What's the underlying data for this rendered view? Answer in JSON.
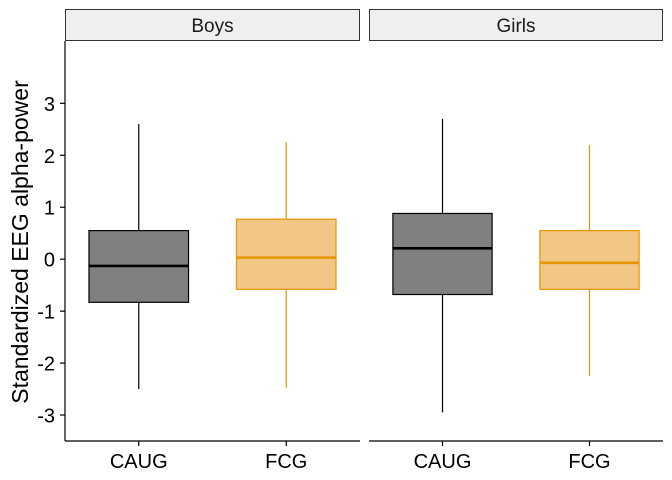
{
  "chart_data": {
    "type": "boxplot",
    "ylabel": "Standardized EEG alpha-power",
    "ylim": [
      -3.5,
      4.2
    ],
    "yticks": [
      -3,
      -2,
      -1,
      0,
      1,
      2,
      3
    ],
    "categories": [
      "CAUG",
      "FCG"
    ],
    "category_colors": {
      "CAUG": {
        "fill": "#808080",
        "line": "#000000"
      },
      "FCG": {
        "fill": "#f2c785",
        "line": "#e69500"
      }
    },
    "panels": [
      {
        "name": "Boys",
        "boxes": [
          {
            "category": "CAUG",
            "min": -2.5,
            "q1": -0.83,
            "median": -0.13,
            "q3": 0.55,
            "max": 2.6
          },
          {
            "category": "FCG",
            "min": -2.48,
            "q1": -0.58,
            "median": 0.03,
            "q3": 0.77,
            "max": 2.25
          }
        ]
      },
      {
        "name": "Girls",
        "boxes": [
          {
            "category": "CAUG",
            "min": -2.95,
            "q1": -0.68,
            "median": 0.21,
            "q3": 0.88,
            "max": 2.7
          },
          {
            "category": "FCG",
            "min": -2.25,
            "q1": -0.58,
            "median": -0.07,
            "q3": 0.55,
            "max": 2.2
          }
        ]
      }
    ]
  }
}
